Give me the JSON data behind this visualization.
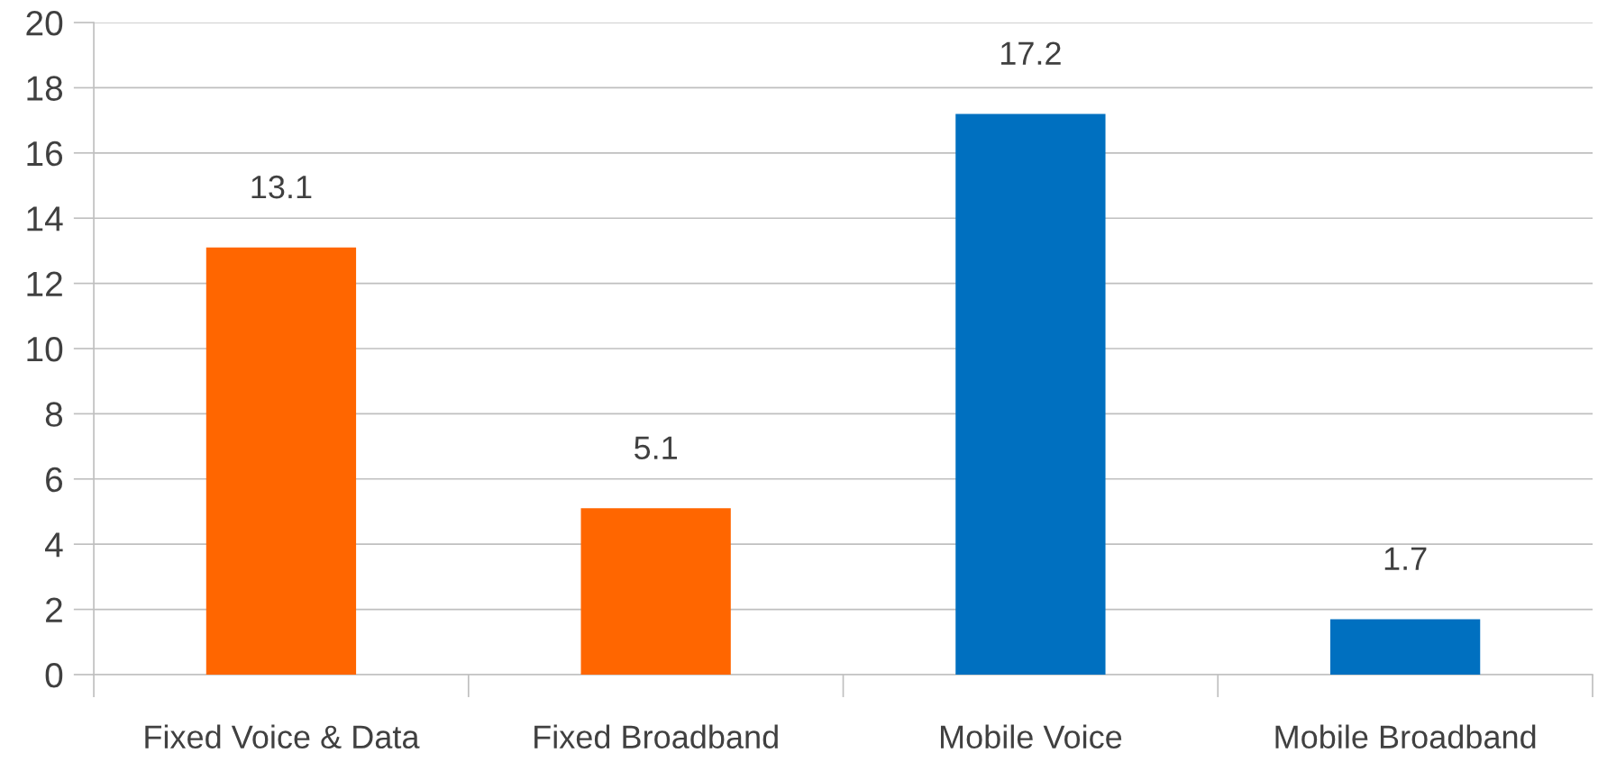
{
  "chart_data": {
    "type": "bar",
    "categories": [
      "Fixed Voice & Data",
      "Fixed Broadband",
      "Mobile Voice",
      "Mobile Broadband"
    ],
    "values": [
      13.1,
      5.1,
      17.2,
      1.7
    ],
    "colors": [
      "#ff6600",
      "#ff6600",
      "#0070c0",
      "#0070c0"
    ],
    "ylim": [
      0,
      20
    ],
    "yticks": [
      0,
      2,
      4,
      6,
      8,
      10,
      12,
      14,
      16,
      18,
      20
    ],
    "grid": "y",
    "data_labels": true
  }
}
